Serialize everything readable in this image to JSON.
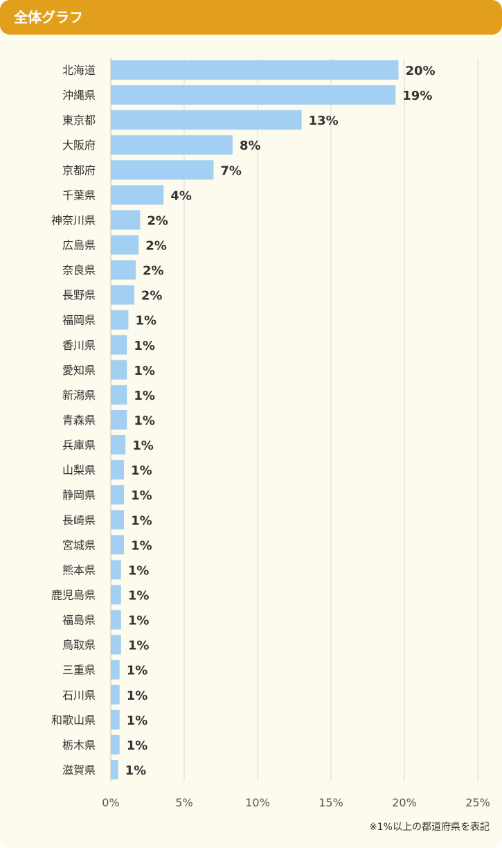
{
  "header": {
    "title": "全体グラフ"
  },
  "note": "※1%以上の都道府県を表記",
  "colors": {
    "bar": "#a3d0f2",
    "header": "#e29f1c",
    "background": "#fdfbed",
    "grid": "#d9d9d9"
  },
  "chart_data": {
    "type": "bar",
    "orientation": "horizontal",
    "title": "",
    "xlabel": "",
    "ylabel": "",
    "xlim": [
      0,
      25
    ],
    "grid": true,
    "categories": [
      "北海道",
      "沖縄県",
      "東京都",
      "大阪府",
      "京都府",
      "千葉県",
      "神奈川県",
      "広島県",
      "奈良県",
      "長野県",
      "福岡県",
      "香川県",
      "愛知県",
      "新潟県",
      "青森県",
      "兵庫県",
      "山梨県",
      "静岡県",
      "長崎県",
      "宮城県",
      "熊本県",
      "鹿児島県",
      "福島県",
      "鳥取県",
      "三重県",
      "石川県",
      "和歌山県",
      "栃木県",
      "滋賀県"
    ],
    "values": [
      19.6,
      19.4,
      13.0,
      8.3,
      7.0,
      3.6,
      2.0,
      1.9,
      1.7,
      1.6,
      1.2,
      1.1,
      1.1,
      1.1,
      1.1,
      1.0,
      0.9,
      0.9,
      0.9,
      0.9,
      0.7,
      0.7,
      0.7,
      0.7,
      0.6,
      0.6,
      0.6,
      0.6,
      0.5
    ],
    "value_labels": [
      "20%",
      "19%",
      "13%",
      "8%",
      "7%",
      "4%",
      "2%",
      "2%",
      "2%",
      "2%",
      "1%",
      "1%",
      "1%",
      "1%",
      "1%",
      "1%",
      "1%",
      "1%",
      "1%",
      "1%",
      "1%",
      "1%",
      "1%",
      "1%",
      "1%",
      "1%",
      "1%",
      "1%",
      "1%"
    ],
    "xticks": [
      0,
      5,
      10,
      15,
      20,
      25
    ],
    "xtick_labels": [
      "0%",
      "5%",
      "10%",
      "15%",
      "20%",
      "25%"
    ]
  }
}
